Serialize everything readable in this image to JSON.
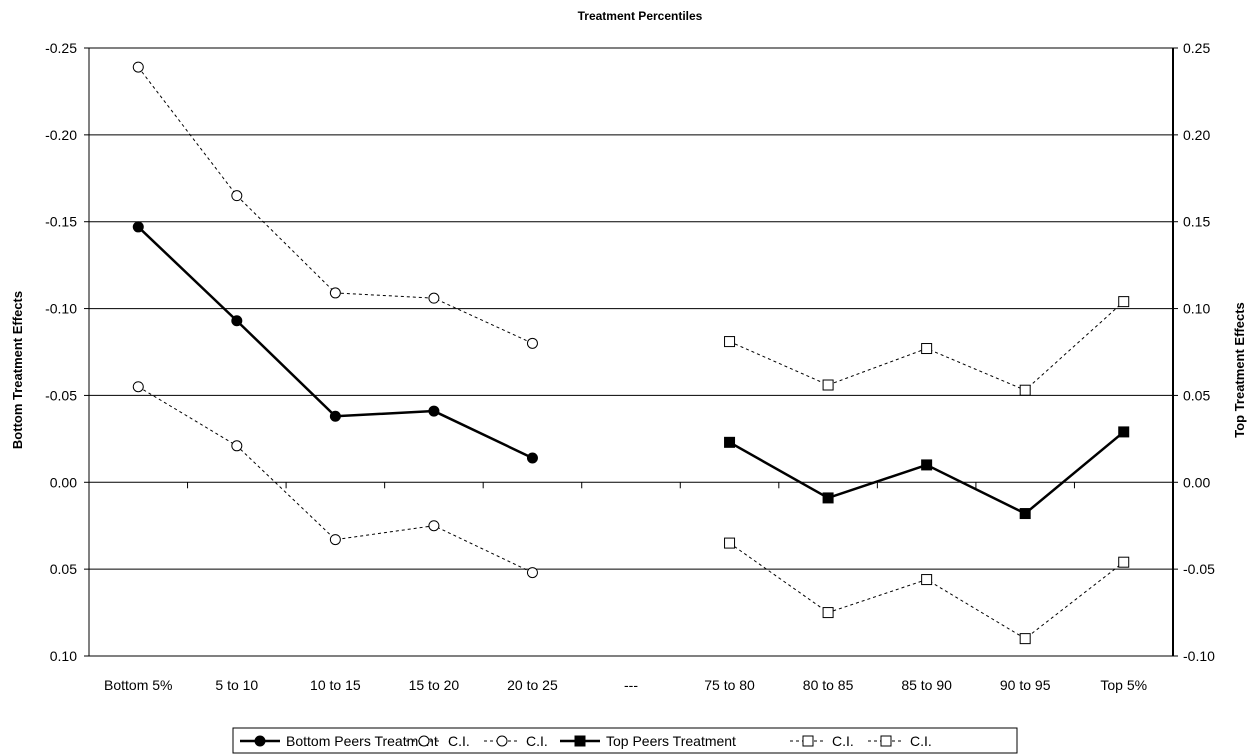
{
  "chart_data": {
    "type": "line",
    "title": "Treatment Percentiles",
    "ylabel_left": "Bottom Treatment  Effects",
    "ylabel_right": "Top Treatment  Effects",
    "categories": [
      "Bottom 5%",
      "5 to 10",
      "10 to 15",
      "15 to 20",
      "20 to 25",
      "---",
      "75 to 80",
      "80 to 85",
      "85 to 90",
      "90 to 95",
      "Top 5%"
    ],
    "left_axis": {
      "range": [
        -0.25,
        0.1
      ],
      "inverted": true,
      "ticks": [
        -0.25,
        -0.2,
        -0.15,
        -0.1,
        -0.05,
        0.0,
        0.05,
        0.1
      ],
      "tick_labels": [
        "-0.25",
        "-0.20",
        "-0.15",
        "-0.10",
        "-0.05",
        "0.00",
        "0.05",
        "0.10"
      ]
    },
    "right_axis": {
      "range": [
        -0.1,
        0.25
      ],
      "inverted": false,
      "ticks": [
        0.25,
        0.2,
        0.15,
        0.1,
        0.05,
        0.0,
        -0.05,
        -0.1
      ],
      "tick_labels": [
        "0.25",
        "0.20",
        "0.15",
        "0.10",
        "0.05",
        "0.00",
        "-0.05",
        "-0.10"
      ]
    },
    "grid": true,
    "legend_position": "bottom",
    "series": [
      {
        "name": "Bottom Peers Treatment",
        "axis": "left",
        "style": "solid",
        "marker": "filled-circle",
        "color": "#000000",
        "values": [
          -0.147,
          -0.093,
          -0.038,
          -0.041,
          -0.014,
          null,
          null,
          null,
          null,
          null,
          null
        ]
      },
      {
        "name": "C.I.",
        "axis": "left",
        "style": "dashed",
        "marker": "open-circle",
        "color": "#000000",
        "values": [
          -0.239,
          -0.165,
          -0.109,
          -0.106,
          -0.08,
          null,
          null,
          null,
          null,
          null,
          null
        ]
      },
      {
        "name": "C.I.",
        "axis": "left",
        "style": "dashed",
        "marker": "open-circle",
        "color": "#000000",
        "values": [
          -0.055,
          -0.021,
          0.033,
          0.025,
          0.052,
          null,
          null,
          null,
          null,
          null,
          null
        ]
      },
      {
        "name": "Top Peers Treatment",
        "axis": "right",
        "style": "solid",
        "marker": "filled-square",
        "color": "#000000",
        "values": [
          null,
          null,
          null,
          null,
          null,
          null,
          0.023,
          -0.009,
          0.01,
          -0.018,
          0.029
        ]
      },
      {
        "name": "C.I.",
        "axis": "right",
        "style": "dashed",
        "marker": "open-square",
        "color": "#000000",
        "values": [
          null,
          null,
          null,
          null,
          null,
          null,
          0.081,
          0.056,
          0.077,
          0.053,
          0.104
        ]
      },
      {
        "name": "C.I.",
        "axis": "right",
        "style": "dashed",
        "marker": "open-square",
        "color": "#000000",
        "values": [
          null,
          null,
          null,
          null,
          null,
          null,
          -0.035,
          -0.075,
          -0.056,
          -0.09,
          -0.046
        ]
      }
    ]
  }
}
